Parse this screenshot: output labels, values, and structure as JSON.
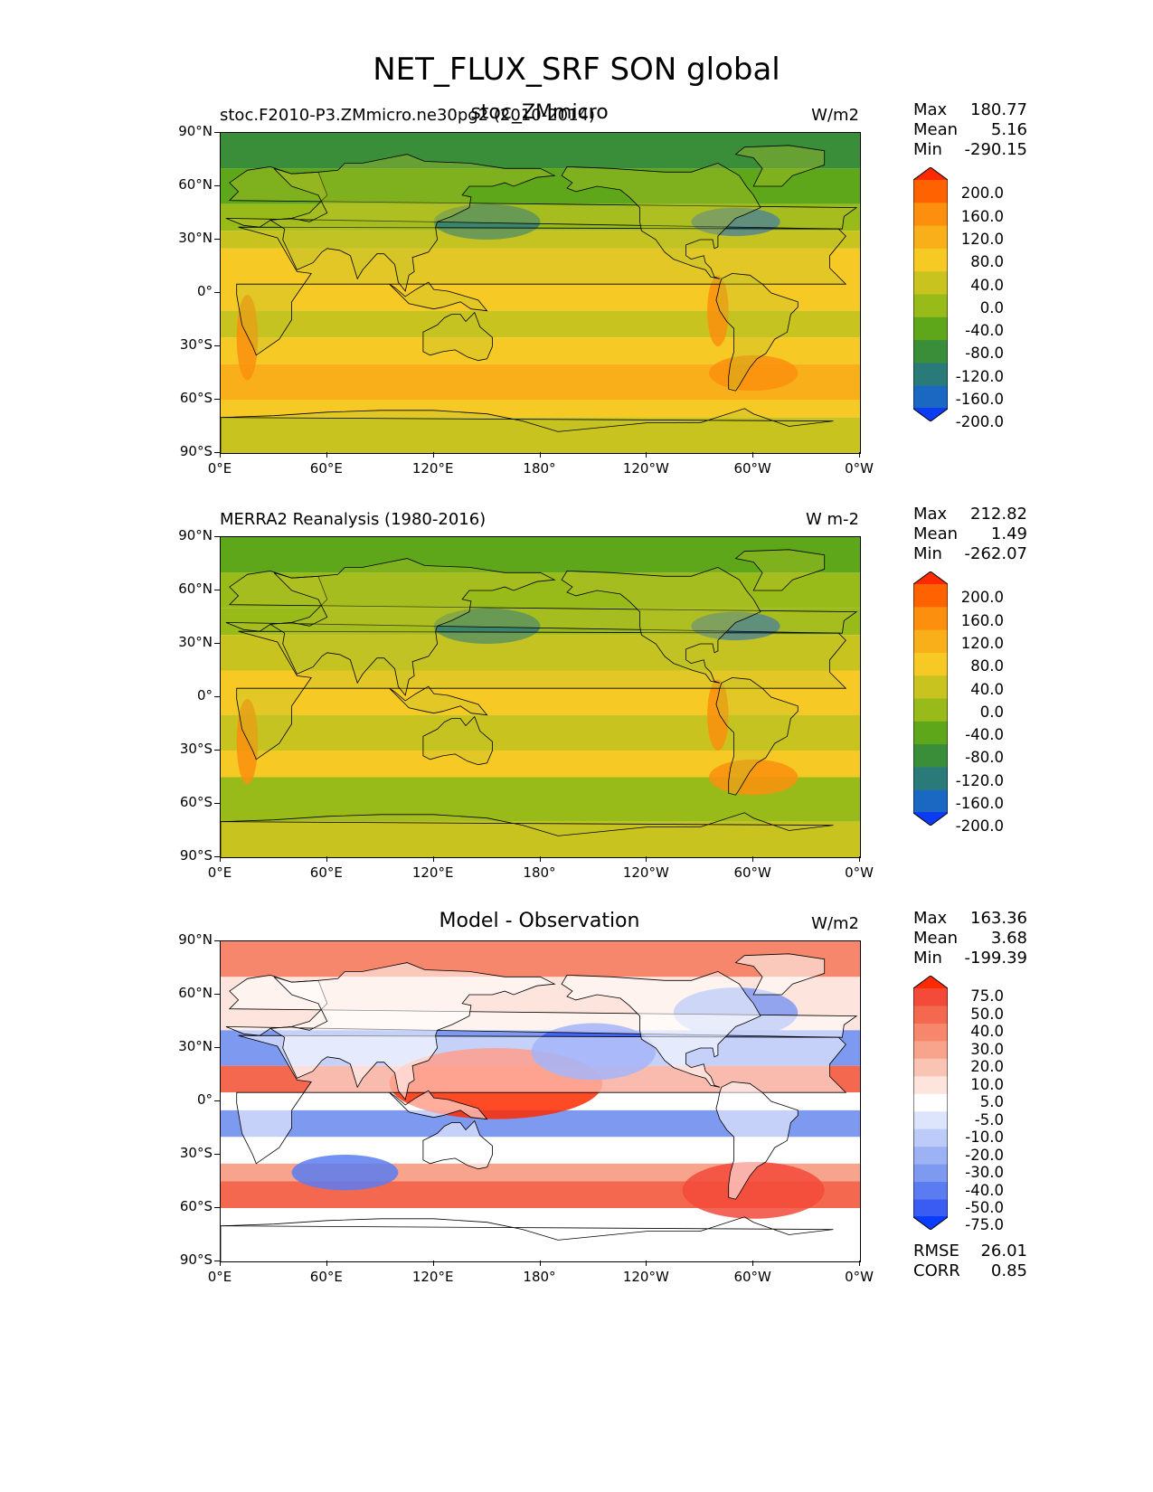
{
  "figure": {
    "title": "NET_FLUX_SRF SON global"
  },
  "axes": {
    "lat_labels": [
      "90°N",
      "60°N",
      "30°N",
      "0°",
      "30°S",
      "60°S",
      "90°S"
    ],
    "lon_labels": [
      "0°E",
      "60°E",
      "120°E",
      "180°",
      "120°W",
      "60°W",
      "0°W"
    ]
  },
  "panels": [
    {
      "left_title": "stoc.F2010-P3.ZMmicro.ne30pg2 (2010-2014)",
      "center_title": "stoc_ZMmicro",
      "units": "W/m2",
      "stats": {
        "max_label": "Max",
        "max": "180.77",
        "mean_label": "Mean",
        "mean": "5.16",
        "min_label": "Min",
        "min": "-290.15"
      },
      "colorbar": {
        "levels": [
          "200.0",
          "160.0",
          "120.0",
          "80.0",
          "40.0",
          "0.0",
          "-40.0",
          "-80.0",
          "-120.0",
          "-160.0",
          "-200.0"
        ],
        "colors": [
          "#ff2a00",
          "#ff6200",
          "#fc8f0e",
          "#f8af1a",
          "#f6c925",
          "#c8c31f",
          "#99bb1a",
          "#5ea61a",
          "#3a8e3a",
          "#2b7a7a",
          "#1b68c2",
          "#0c3cf2"
        ]
      }
    },
    {
      "left_title": "MERRA2 Reanalysis (1980-2016)",
      "center_title": "",
      "units": "W m-2",
      "stats": {
        "max_label": "Max",
        "max": "212.82",
        "mean_label": "Mean",
        "mean": "1.49",
        "min_label": "Min",
        "min": "-262.07"
      },
      "colorbar": {
        "levels": [
          "200.0",
          "160.0",
          "120.0",
          "80.0",
          "40.0",
          "0.0",
          "-40.0",
          "-80.0",
          "-120.0",
          "-160.0",
          "-200.0"
        ],
        "colors": [
          "#ff2a00",
          "#ff6200",
          "#fc8f0e",
          "#f8af1a",
          "#f6c925",
          "#c8c31f",
          "#99bb1a",
          "#5ea61a",
          "#3a8e3a",
          "#2b7a7a",
          "#1b68c2",
          "#0c3cf2"
        ]
      }
    },
    {
      "left_title": "",
      "center_title": "Model - Observation",
      "units": "W/m2",
      "stats": {
        "max_label": "Max",
        "max": "163.36",
        "mean_label": "Mean",
        "mean": "3.68",
        "min_label": "Min",
        "min": "-199.39"
      },
      "extra_stats": {
        "rmse_label": "RMSE",
        "rmse": "26.01",
        "corr_label": "CORR",
        "corr": "0.85"
      },
      "colorbar": {
        "levels": [
          "75.0",
          "50.0",
          "40.0",
          "30.0",
          "20.0",
          "10.0",
          "5.0",
          "-5.0",
          "-10.0",
          "-20.0",
          "-30.0",
          "-40.0",
          "-50.0",
          "-75.0"
        ],
        "colors": [
          "#ff2a00",
          "#f34a3a",
          "#f4684f",
          "#f6866c",
          "#f8a48c",
          "#fac4b4",
          "#fde4dc",
          "#ffffff",
          "#dde5fc",
          "#bccbf8",
          "#9db2f4",
          "#7e99f0",
          "#5a7cf0",
          "#3a5cf2",
          "#0a3cff"
        ]
      }
    }
  ]
}
